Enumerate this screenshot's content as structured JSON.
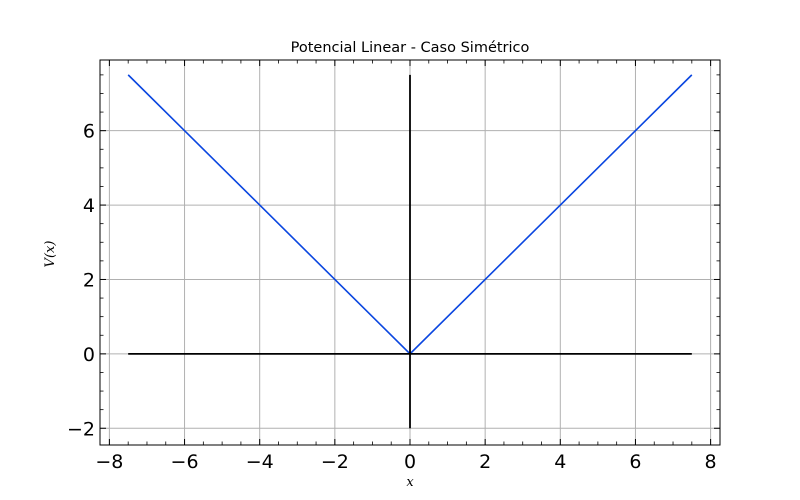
{
  "chart_data": {
    "type": "line",
    "title": "Potencial Linear - Caso Simétrico",
    "xlabel": "x",
    "ylabel": "V(x)",
    "xlim": [
      -8.25,
      8.25
    ],
    "ylim": [
      -2.45,
      7.9
    ],
    "xticks": [
      -8,
      -6,
      -4,
      -2,
      0,
      2,
      4,
      6,
      8
    ],
    "xtick_labels": [
      "−8",
      "−6",
      "−4",
      "−2",
      "0",
      "2",
      "4",
      "6",
      "8"
    ],
    "yticks": [
      -2,
      0,
      2,
      4,
      6
    ],
    "ytick_labels": [
      "−2",
      "0",
      "2",
      "4",
      "6"
    ],
    "grid": true,
    "series": [
      {
        "role": "potential",
        "color": "#0a46e0",
        "x": [
          -7.5,
          0,
          7.5
        ],
        "y": [
          7.5,
          0,
          7.5
        ]
      },
      {
        "role": "x-axis-line",
        "color": "#000000",
        "x": [
          -7.5,
          7.5
        ],
        "y": [
          0,
          0
        ]
      },
      {
        "role": "y-axis-line",
        "color": "#000000",
        "x": [
          0,
          0
        ],
        "y": [
          -2,
          7.5
        ]
      }
    ]
  }
}
